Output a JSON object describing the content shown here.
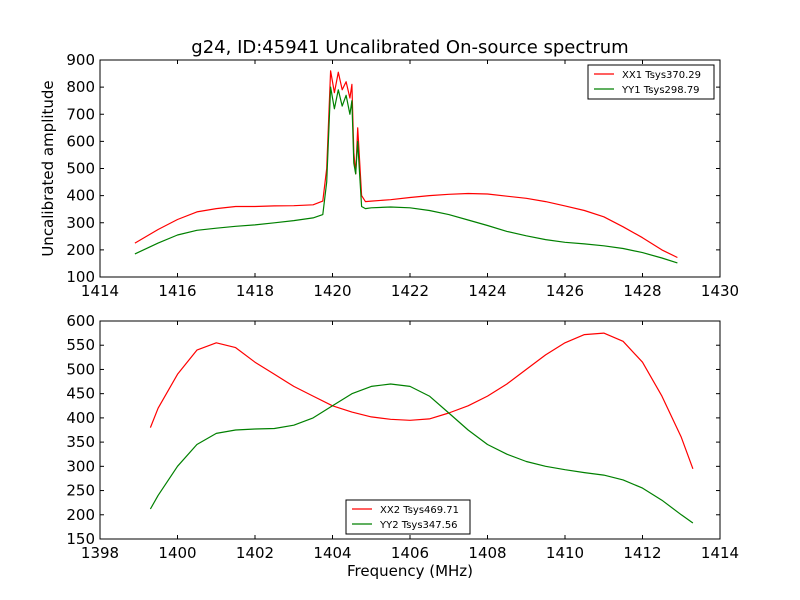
{
  "figure": {
    "title": "g24, ID:45941 Uncalibrated On-source spectrum"
  },
  "chart_data": [
    {
      "type": "line",
      "title": "g24, ID:45941 Uncalibrated On-source spectrum",
      "xlabel": "",
      "ylabel": "Uncalibrated amplitude",
      "xlim": [
        1414,
        1430
      ],
      "ylim": [
        100,
        900
      ],
      "xticks": [
        1414,
        1416,
        1418,
        1420,
        1422,
        1424,
        1426,
        1428,
        1430
      ],
      "yticks": [
        100,
        200,
        300,
        400,
        500,
        600,
        700,
        800,
        900
      ],
      "grid": false,
      "legend_position": "top-right",
      "series": [
        {
          "name": "XX1 Tsys370.29",
          "color": "#ff0000",
          "x": [
            1414.9,
            1415.5,
            1416.0,
            1416.5,
            1417.0,
            1417.5,
            1418.0,
            1418.5,
            1419.0,
            1419.5,
            1419.75,
            1419.85,
            1419.95,
            1420.05,
            1420.15,
            1420.25,
            1420.35,
            1420.45,
            1420.5,
            1420.55,
            1420.6,
            1420.65,
            1420.7,
            1420.75,
            1420.85,
            1421.0,
            1421.5,
            1422.0,
            1422.5,
            1423.0,
            1423.5,
            1424.0,
            1424.5,
            1425.0,
            1425.5,
            1426.0,
            1426.5,
            1427.0,
            1427.5,
            1428.0,
            1428.5,
            1428.9
          ],
          "y": [
            225,
            275,
            312,
            340,
            352,
            360,
            360,
            362,
            363,
            366,
            380,
            500,
            860,
            780,
            855,
            790,
            820,
            760,
            810,
            560,
            480,
            650,
            530,
            400,
            378,
            380,
            385,
            393,
            400,
            405,
            408,
            406,
            398,
            390,
            378,
            362,
            345,
            322,
            285,
            245,
            200,
            172
          ]
        },
        {
          "name": "YY1 Tsys298.79",
          "color": "#008000",
          "x": [
            1414.9,
            1415.5,
            1416.0,
            1416.5,
            1417.0,
            1417.5,
            1418.0,
            1418.5,
            1419.0,
            1419.5,
            1419.75,
            1419.85,
            1419.95,
            1420.05,
            1420.15,
            1420.25,
            1420.35,
            1420.45,
            1420.5,
            1420.55,
            1420.6,
            1420.65,
            1420.7,
            1420.75,
            1420.85,
            1421.0,
            1421.5,
            1422.0,
            1422.5,
            1423.0,
            1423.5,
            1424.0,
            1424.5,
            1425.0,
            1425.5,
            1426.0,
            1426.5,
            1427.0,
            1427.5,
            1428.0,
            1428.5,
            1428.9
          ],
          "y": [
            185,
            225,
            255,
            272,
            280,
            287,
            292,
            300,
            308,
            318,
            330,
            450,
            800,
            720,
            790,
            730,
            770,
            700,
            750,
            520,
            480,
            600,
            480,
            360,
            352,
            355,
            358,
            355,
            345,
            330,
            310,
            290,
            268,
            252,
            238,
            228,
            222,
            215,
            205,
            190,
            170,
            152
          ]
        }
      ]
    },
    {
      "type": "line",
      "title": "",
      "xlabel": "Frequency (MHz)",
      "ylabel": "",
      "xlim": [
        1398,
        1414
      ],
      "ylim": [
        150,
        600
      ],
      "xticks": [
        1398,
        1400,
        1402,
        1404,
        1406,
        1408,
        1410,
        1412,
        1414
      ],
      "yticks": [
        150,
        200,
        250,
        300,
        350,
        400,
        450,
        500,
        550,
        600
      ],
      "grid": false,
      "legend_position": "bottom-center",
      "series": [
        {
          "name": "XX2 Tsys469.71",
          "color": "#ff0000",
          "x": [
            1399.3,
            1399.5,
            1400.0,
            1400.5,
            1401.0,
            1401.5,
            1402.0,
            1402.5,
            1403.0,
            1403.5,
            1404.0,
            1404.5,
            1405.0,
            1405.5,
            1406.0,
            1406.5,
            1407.0,
            1407.5,
            1408.0,
            1408.5,
            1409.0,
            1409.5,
            1410.0,
            1410.5,
            1411.0,
            1411.5,
            1412.0,
            1412.5,
            1413.0,
            1413.3
          ],
          "y": [
            380,
            420,
            490,
            540,
            555,
            545,
            515,
            490,
            465,
            445,
            425,
            412,
            402,
            397,
            395,
            398,
            410,
            425,
            445,
            470,
            500,
            530,
            555,
            572,
            575,
            558,
            515,
            445,
            360,
            295
          ]
        },
        {
          "name": "YY2 Tsys347.56",
          "color": "#008000",
          "x": [
            1399.3,
            1399.5,
            1400.0,
            1400.5,
            1401.0,
            1401.5,
            1402.0,
            1402.5,
            1403.0,
            1403.5,
            1404.0,
            1404.5,
            1405.0,
            1405.5,
            1406.0,
            1406.5,
            1407.0,
            1407.5,
            1408.0,
            1408.5,
            1409.0,
            1409.5,
            1410.0,
            1410.5,
            1411.0,
            1411.5,
            1412.0,
            1412.5,
            1413.0,
            1413.3
          ],
          "y": [
            212,
            240,
            300,
            345,
            368,
            375,
            377,
            378,
            385,
            400,
            425,
            450,
            465,
            470,
            465,
            445,
            410,
            375,
            345,
            325,
            310,
            300,
            293,
            287,
            282,
            272,
            255,
            230,
            200,
            183
          ]
        }
      ]
    }
  ]
}
